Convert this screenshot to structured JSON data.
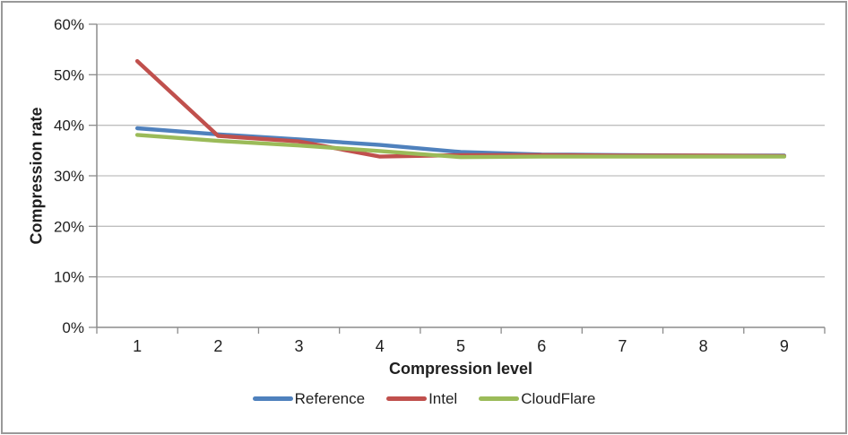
{
  "chart_data": {
    "type": "line",
    "title": "",
    "xlabel": "Compression level",
    "ylabel": "Compression rate",
    "x": [
      1,
      2,
      3,
      4,
      5,
      6,
      7,
      8,
      9
    ],
    "x_tick_labels": [
      "1",
      "2",
      "3",
      "4",
      "5",
      "6",
      "7",
      "8",
      "9"
    ],
    "y_tick_labels": [
      "0%",
      "10%",
      "20%",
      "30%",
      "40%",
      "50%",
      "60%"
    ],
    "ylim": [
      0,
      60
    ],
    "y_tick_step": 10,
    "y_unit": "%",
    "grid": "horizontal",
    "legend_position": "bottom",
    "series": [
      {
        "name": "Reference",
        "color": "#4F81BD",
        "values": [
          39.4,
          38.2,
          37.2,
          36.1,
          34.7,
          34.2,
          34.1,
          34.0,
          34.0
        ]
      },
      {
        "name": "Intel",
        "color": "#C0504D",
        "values": [
          52.7,
          37.9,
          36.8,
          33.8,
          34.1,
          34.1,
          34.0,
          34.0,
          33.9
        ]
      },
      {
        "name": "CloudFlare",
        "color": "#9BBB59",
        "values": [
          38.1,
          36.9,
          36.0,
          34.9,
          33.7,
          33.8,
          33.8,
          33.8,
          33.8
        ]
      }
    ]
  },
  "colors": {
    "gridline": "#BFBFBF",
    "axis": "#8C8C8C",
    "tick": "#8C8C8C",
    "text": "#1F1F1F",
    "border": "#999999",
    "background": "#FFFFFF"
  }
}
